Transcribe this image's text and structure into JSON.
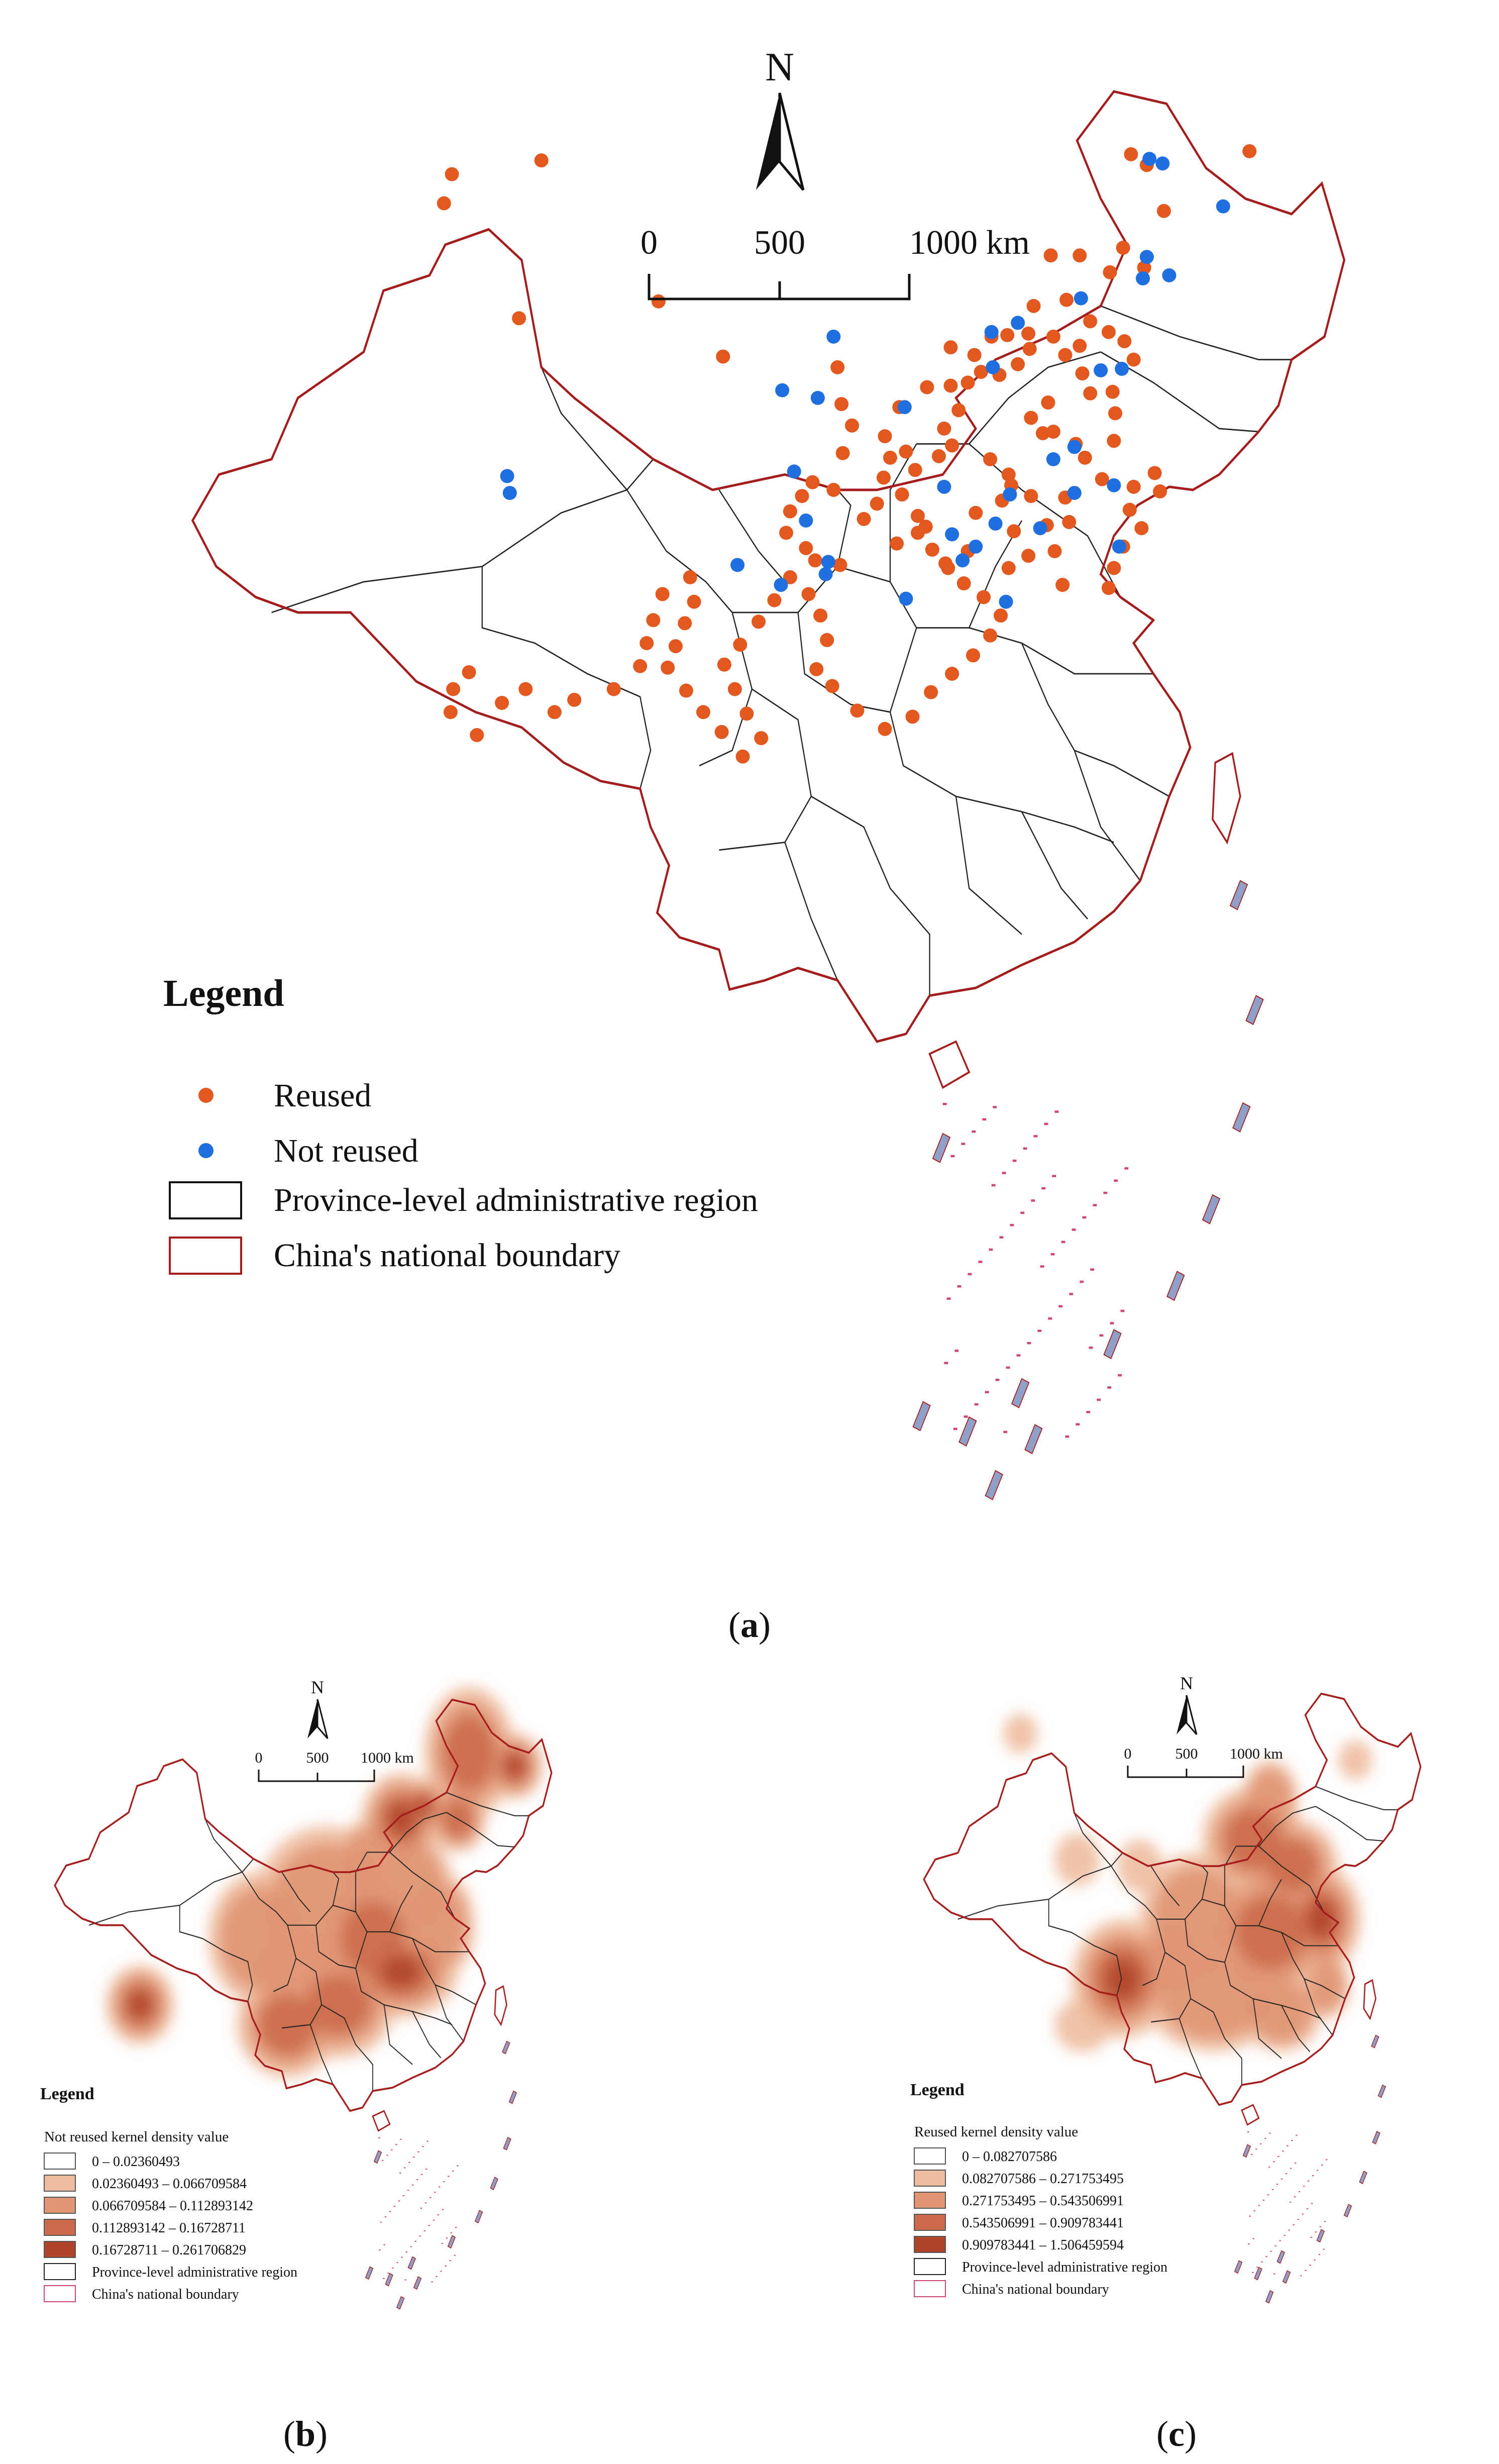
{
  "panel_a": {
    "north": "N",
    "scale": {
      "t0": "0",
      "t1": "500",
      "t2": "1000 km"
    },
    "legend": {
      "title": "Legend",
      "items": [
        "Reused",
        "Not reused",
        "Province-level administrative region",
        "China's national boundary"
      ]
    },
    "caption_open": "(",
    "caption_letter": "a",
    "caption_close": ")",
    "colors": {
      "reused": "#e2581f",
      "not_reused": "#1f6fe0",
      "boundary": "#a51c1c",
      "province": "#222222"
    },
    "reused_points": [
      [
        0.267,
        0.094
      ],
      [
        0.261,
        0.113
      ],
      [
        0.335,
        0.085
      ],
      [
        0.783,
        0.081
      ],
      [
        0.795,
        0.088
      ],
      [
        0.873,
        0.079
      ],
      [
        0.808,
        0.118
      ],
      [
        0.722,
        0.147
      ],
      [
        0.744,
        0.147
      ],
      [
        0.777,
        0.142
      ],
      [
        0.767,
        0.158
      ],
      [
        0.793,
        0.155
      ],
      [
        0.709,
        0.18
      ],
      [
        0.705,
        0.198
      ],
      [
        0.752,
        0.19
      ],
      [
        0.734,
        0.176
      ],
      [
        0.424,
        0.177
      ],
      [
        0.318,
        0.188
      ],
      [
        0.473,
        0.213
      ],
      [
        0.56,
        0.22
      ],
      [
        0.646,
        0.207
      ],
      [
        0.664,
        0.212
      ],
      [
        0.677,
        0.2
      ],
      [
        0.689,
        0.199
      ],
      [
        0.724,
        0.2
      ],
      [
        0.744,
        0.206
      ],
      [
        0.733,
        0.212
      ],
      [
        0.766,
        0.197
      ],
      [
        0.778,
        0.203
      ],
      [
        0.785,
        0.215
      ],
      [
        0.746,
        0.224
      ],
      [
        0.752,
        0.237
      ],
      [
        0.769,
        0.236
      ],
      [
        0.771,
        0.25
      ],
      [
        0.72,
        0.243
      ],
      [
        0.707,
        0.253
      ],
      [
        0.724,
        0.262
      ],
      [
        0.741,
        0.27
      ],
      [
        0.77,
        0.268
      ],
      [
        0.748,
        0.279
      ],
      [
        0.761,
        0.293
      ],
      [
        0.785,
        0.298
      ],
      [
        0.801,
        0.289
      ],
      [
        0.805,
        0.301
      ],
      [
        0.782,
        0.313
      ],
      [
        0.791,
        0.325
      ],
      [
        0.777,
        0.337
      ],
      [
        0.77,
        0.351
      ],
      [
        0.766,
        0.364
      ],
      [
        0.731,
        0.362
      ],
      [
        0.725,
        0.34
      ],
      [
        0.736,
        0.321
      ],
      [
        0.719,
        0.323
      ],
      [
        0.707,
        0.304
      ],
      [
        0.692,
        0.297
      ],
      [
        0.685,
        0.307
      ],
      [
        0.665,
        0.315
      ],
      [
        0.694,
        0.327
      ],
      [
        0.705,
        0.343
      ],
      [
        0.69,
        0.351
      ],
      [
        0.659,
        0.34
      ],
      [
        0.644,
        0.351
      ],
      [
        0.627,
        0.324
      ],
      [
        0.621,
        0.317
      ],
      [
        0.609,
        0.303
      ],
      [
        0.619,
        0.287
      ],
      [
        0.637,
        0.278
      ],
      [
        0.647,
        0.271
      ],
      [
        0.641,
        0.26
      ],
      [
        0.652,
        0.248
      ],
      [
        0.646,
        0.232
      ],
      [
        0.659,
        0.23
      ],
      [
        0.669,
        0.223
      ],
      [
        0.683,
        0.225
      ],
      [
        0.697,
        0.218
      ],
      [
        0.706,
        0.208
      ],
      [
        0.628,
        0.233
      ],
      [
        0.607,
        0.246
      ],
      [
        0.596,
        0.265
      ],
      [
        0.563,
        0.244
      ],
      [
        0.571,
        0.258
      ],
      [
        0.564,
        0.276
      ],
      [
        0.541,
        0.295
      ],
      [
        0.533,
        0.304
      ],
      [
        0.524,
        0.314
      ],
      [
        0.521,
        0.328
      ],
      [
        0.536,
        0.338
      ],
      [
        0.543,
        0.346
      ],
      [
        0.562,
        0.349
      ],
      [
        0.557,
        0.3
      ],
      [
        0.58,
        0.319
      ],
      [
        0.59,
        0.309
      ],
      [
        0.595,
        0.292
      ],
      [
        0.6,
        0.279
      ],
      [
        0.612,
        0.275
      ],
      [
        0.605,
        0.335
      ],
      [
        0.621,
        0.328
      ],
      [
        0.632,
        0.339
      ],
      [
        0.642,
        0.348
      ],
      [
        0.656,
        0.361
      ],
      [
        0.671,
        0.37
      ],
      [
        0.684,
        0.382
      ],
      [
        0.676,
        0.395
      ],
      [
        0.663,
        0.408
      ],
      [
        0.647,
        0.42
      ],
      [
        0.631,
        0.432
      ],
      [
        0.617,
        0.448
      ],
      [
        0.596,
        0.456
      ],
      [
        0.575,
        0.444
      ],
      [
        0.556,
        0.428
      ],
      [
        0.544,
        0.417
      ],
      [
        0.552,
        0.398
      ],
      [
        0.547,
        0.382
      ],
      [
        0.538,
        0.368
      ],
      [
        0.524,
        0.357
      ],
      [
        0.512,
        0.372
      ],
      [
        0.5,
        0.386
      ],
      [
        0.486,
        0.401
      ],
      [
        0.474,
        0.414
      ],
      [
        0.482,
        0.43
      ],
      [
        0.491,
        0.446
      ],
      [
        0.502,
        0.462
      ],
      [
        0.488,
        0.474
      ],
      [
        0.451,
        0.373
      ],
      [
        0.444,
        0.387
      ],
      [
        0.437,
        0.402
      ],
      [
        0.431,
        0.416
      ],
      [
        0.445,
        0.431
      ],
      [
        0.458,
        0.445
      ],
      [
        0.472,
        0.458
      ],
      [
        0.427,
        0.368
      ],
      [
        0.42,
        0.385
      ],
      [
        0.415,
        0.4
      ],
      [
        0.41,
        0.415
      ],
      [
        0.39,
        0.43
      ],
      [
        0.36,
        0.437
      ],
      [
        0.345,
        0.445
      ],
      [
        0.323,
        0.43
      ],
      [
        0.305,
        0.439
      ],
      [
        0.28,
        0.419
      ],
      [
        0.268,
        0.43
      ],
      [
        0.266,
        0.445
      ],
      [
        0.286,
        0.46
      ],
      [
        0.448,
        0.357
      ],
      [
        0.69,
        0.29
      ],
      [
        0.716,
        0.263
      ],
      [
        0.733,
        0.305
      ],
      [
        0.676,
        0.28
      ]
    ],
    "not_reused_points": [
      [
        0.797,
        0.084
      ],
      [
        0.807,
        0.087
      ],
      [
        0.853,
        0.115
      ],
      [
        0.812,
        0.16
      ],
      [
        0.795,
        0.148
      ],
      [
        0.792,
        0.162
      ],
      [
        0.745,
        0.175
      ],
      [
        0.677,
        0.197
      ],
      [
        0.697,
        0.191
      ],
      [
        0.678,
        0.22
      ],
      [
        0.776,
        0.221
      ],
      [
        0.557,
        0.2
      ],
      [
        0.518,
        0.235
      ],
      [
        0.545,
        0.24
      ],
      [
        0.611,
        0.246
      ],
      [
        0.76,
        0.222
      ],
      [
        0.724,
        0.28
      ],
      [
        0.74,
        0.302
      ],
      [
        0.77,
        0.297
      ],
      [
        0.74,
        0.272
      ],
      [
        0.641,
        0.298
      ],
      [
        0.691,
        0.303
      ],
      [
        0.68,
        0.322
      ],
      [
        0.714,
        0.325
      ],
      [
        0.774,
        0.337
      ],
      [
        0.665,
        0.337
      ],
      [
        0.655,
        0.346
      ],
      [
        0.527,
        0.288
      ],
      [
        0.536,
        0.32
      ],
      [
        0.553,
        0.347
      ],
      [
        0.551,
        0.355
      ],
      [
        0.484,
        0.349
      ],
      [
        0.517,
        0.362
      ],
      [
        0.309,
        0.291
      ],
      [
        0.311,
        0.302
      ],
      [
        0.688,
        0.373
      ],
      [
        0.647,
        0.329
      ],
      [
        0.612,
        0.371
      ]
    ]
  },
  "panel_b": {
    "north": "N",
    "scale": {
      "t0": "0",
      "t1": "500",
      "t2": "1000 km"
    },
    "legend": {
      "title": "Legend",
      "subtitle": "Not reused kernel density value",
      "classes": [
        "0 – 0.02360493",
        "0.02360493 – 0.066709584",
        "0.066709584 – 0.112893142",
        "0.112893142 – 0.16728711",
        "0.16728711 – 0.261706829"
      ],
      "region": "Province-level administrative region",
      "boundary": "China's national boundary"
    },
    "class_colors": [
      "#ffffff",
      "#eebc9e",
      "#e09573",
      "#cb6b4b",
      "#b0442b"
    ],
    "hotspots": [
      [
        0.8,
        0.12,
        0.08,
        0.1,
        3
      ],
      [
        0.88,
        0.14,
        0.05,
        0.05,
        4
      ],
      [
        0.68,
        0.22,
        0.07,
        0.07,
        4
      ],
      [
        0.72,
        0.2,
        0.04,
        0.04,
        4
      ],
      [
        0.78,
        0.22,
        0.05,
        0.05,
        3
      ],
      [
        0.55,
        0.35,
        0.13,
        0.12,
        2
      ],
      [
        0.63,
        0.4,
        0.1,
        0.1,
        3
      ],
      [
        0.68,
        0.45,
        0.1,
        0.07,
        4
      ],
      [
        0.57,
        0.5,
        0.1,
        0.08,
        3
      ],
      [
        0.48,
        0.53,
        0.09,
        0.08,
        3
      ],
      [
        0.22,
        0.5,
        0.06,
        0.06,
        4
      ],
      [
        0.43,
        0.4,
        0.09,
        0.1,
        2
      ],
      [
        0.7,
        0.32,
        0.07,
        0.08,
        2
      ],
      [
        0.75,
        0.38,
        0.06,
        0.08,
        2
      ],
      [
        0.62,
        0.28,
        0.05,
        0.06,
        2
      ],
      [
        0.5,
        0.45,
        0.09,
        0.07,
        2
      ]
    ],
    "caption_open": "(",
    "caption_letter": "b",
    "caption_close": ")"
  },
  "panel_c": {
    "north": "N",
    "scale": {
      "t0": "0",
      "t1": "500",
      "t2": "1000 km"
    },
    "legend": {
      "title": "Legend",
      "subtitle": "Reused kernel density value",
      "classes": [
        "0 – 0.082707586",
        "0.082707586 – 0.271753495",
        "0.271753495 – 0.543506991",
        "0.543506991 – 0.909783441",
        "0.909783441 – 1.506459594"
      ],
      "region": "Province-level administrative region",
      "boundary": "China's national boundary"
    },
    "class_colors": [
      "#ffffff",
      "#eebc9e",
      "#e09573",
      "#cb6b4b",
      "#b0442b"
    ],
    "hotspots": [
      [
        0.24,
        0.1,
        0.03,
        0.03,
        1
      ],
      [
        0.83,
        0.14,
        0.03,
        0.03,
        1
      ],
      [
        0.68,
        0.2,
        0.05,
        0.06,
        2
      ],
      [
        0.65,
        0.26,
        0.09,
        0.08,
        3
      ],
      [
        0.72,
        0.3,
        0.08,
        0.07,
        3
      ],
      [
        0.77,
        0.38,
        0.07,
        0.08,
        4
      ],
      [
        0.68,
        0.4,
        0.11,
        0.1,
        3
      ],
      [
        0.55,
        0.38,
        0.1,
        0.1,
        2
      ],
      [
        0.42,
        0.47,
        0.09,
        0.09,
        4
      ],
      [
        0.5,
        0.44,
        0.06,
        0.06,
        2
      ],
      [
        0.58,
        0.5,
        0.12,
        0.08,
        2
      ],
      [
        0.35,
        0.54,
        0.05,
        0.04,
        1
      ],
      [
        0.34,
        0.29,
        0.04,
        0.04,
        1
      ],
      [
        0.45,
        0.3,
        0.04,
        0.04,
        1
      ],
      [
        0.7,
        0.52,
        0.07,
        0.06,
        2
      ],
      [
        0.78,
        0.48,
        0.04,
        0.05,
        2
      ]
    ],
    "caption_open": "(",
    "caption_letter": "c",
    "caption_close": ")"
  }
}
